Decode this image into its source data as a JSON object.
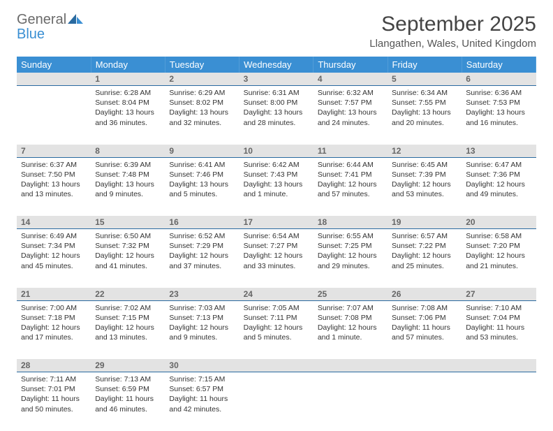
{
  "logo": {
    "word1": "General",
    "word2": "Blue"
  },
  "title": "September 2025",
  "location": "Llangathen, Wales, United Kingdom",
  "colors": {
    "header_bg": "#3a8fd3",
    "header_text": "#ffffff",
    "daynum_bg": "#e3e3e3",
    "daynum_text": "#666666",
    "rule": "#2a6aa0",
    "body_text": "#333333",
    "logo_grey": "#6a6a6a",
    "logo_blue": "#3a8fd3"
  },
  "weekdays": [
    "Sunday",
    "Monday",
    "Tuesday",
    "Wednesday",
    "Thursday",
    "Friday",
    "Saturday"
  ],
  "weeks": [
    {
      "nums": [
        "",
        "1",
        "2",
        "3",
        "4",
        "5",
        "6"
      ],
      "cells": [
        null,
        {
          "sunrise": "Sunrise: 6:28 AM",
          "sunset": "Sunset: 8:04 PM",
          "day1": "Daylight: 13 hours",
          "day2": "and 36 minutes."
        },
        {
          "sunrise": "Sunrise: 6:29 AM",
          "sunset": "Sunset: 8:02 PM",
          "day1": "Daylight: 13 hours",
          "day2": "and 32 minutes."
        },
        {
          "sunrise": "Sunrise: 6:31 AM",
          "sunset": "Sunset: 8:00 PM",
          "day1": "Daylight: 13 hours",
          "day2": "and 28 minutes."
        },
        {
          "sunrise": "Sunrise: 6:32 AM",
          "sunset": "Sunset: 7:57 PM",
          "day1": "Daylight: 13 hours",
          "day2": "and 24 minutes."
        },
        {
          "sunrise": "Sunrise: 6:34 AM",
          "sunset": "Sunset: 7:55 PM",
          "day1": "Daylight: 13 hours",
          "day2": "and 20 minutes."
        },
        {
          "sunrise": "Sunrise: 6:36 AM",
          "sunset": "Sunset: 7:53 PM",
          "day1": "Daylight: 13 hours",
          "day2": "and 16 minutes."
        }
      ]
    },
    {
      "nums": [
        "7",
        "8",
        "9",
        "10",
        "11",
        "12",
        "13"
      ],
      "cells": [
        {
          "sunrise": "Sunrise: 6:37 AM",
          "sunset": "Sunset: 7:50 PM",
          "day1": "Daylight: 13 hours",
          "day2": "and 13 minutes."
        },
        {
          "sunrise": "Sunrise: 6:39 AM",
          "sunset": "Sunset: 7:48 PM",
          "day1": "Daylight: 13 hours",
          "day2": "and 9 minutes."
        },
        {
          "sunrise": "Sunrise: 6:41 AM",
          "sunset": "Sunset: 7:46 PM",
          "day1": "Daylight: 13 hours",
          "day2": "and 5 minutes."
        },
        {
          "sunrise": "Sunrise: 6:42 AM",
          "sunset": "Sunset: 7:43 PM",
          "day1": "Daylight: 13 hours",
          "day2": "and 1 minute."
        },
        {
          "sunrise": "Sunrise: 6:44 AM",
          "sunset": "Sunset: 7:41 PM",
          "day1": "Daylight: 12 hours",
          "day2": "and 57 minutes."
        },
        {
          "sunrise": "Sunrise: 6:45 AM",
          "sunset": "Sunset: 7:39 PM",
          "day1": "Daylight: 12 hours",
          "day2": "and 53 minutes."
        },
        {
          "sunrise": "Sunrise: 6:47 AM",
          "sunset": "Sunset: 7:36 PM",
          "day1": "Daylight: 12 hours",
          "day2": "and 49 minutes."
        }
      ]
    },
    {
      "nums": [
        "14",
        "15",
        "16",
        "17",
        "18",
        "19",
        "20"
      ],
      "cells": [
        {
          "sunrise": "Sunrise: 6:49 AM",
          "sunset": "Sunset: 7:34 PM",
          "day1": "Daylight: 12 hours",
          "day2": "and 45 minutes."
        },
        {
          "sunrise": "Sunrise: 6:50 AM",
          "sunset": "Sunset: 7:32 PM",
          "day1": "Daylight: 12 hours",
          "day2": "and 41 minutes."
        },
        {
          "sunrise": "Sunrise: 6:52 AM",
          "sunset": "Sunset: 7:29 PM",
          "day1": "Daylight: 12 hours",
          "day2": "and 37 minutes."
        },
        {
          "sunrise": "Sunrise: 6:54 AM",
          "sunset": "Sunset: 7:27 PM",
          "day1": "Daylight: 12 hours",
          "day2": "and 33 minutes."
        },
        {
          "sunrise": "Sunrise: 6:55 AM",
          "sunset": "Sunset: 7:25 PM",
          "day1": "Daylight: 12 hours",
          "day2": "and 29 minutes."
        },
        {
          "sunrise": "Sunrise: 6:57 AM",
          "sunset": "Sunset: 7:22 PM",
          "day1": "Daylight: 12 hours",
          "day2": "and 25 minutes."
        },
        {
          "sunrise": "Sunrise: 6:58 AM",
          "sunset": "Sunset: 7:20 PM",
          "day1": "Daylight: 12 hours",
          "day2": "and 21 minutes."
        }
      ]
    },
    {
      "nums": [
        "21",
        "22",
        "23",
        "24",
        "25",
        "26",
        "27"
      ],
      "cells": [
        {
          "sunrise": "Sunrise: 7:00 AM",
          "sunset": "Sunset: 7:18 PM",
          "day1": "Daylight: 12 hours",
          "day2": "and 17 minutes."
        },
        {
          "sunrise": "Sunrise: 7:02 AM",
          "sunset": "Sunset: 7:15 PM",
          "day1": "Daylight: 12 hours",
          "day2": "and 13 minutes."
        },
        {
          "sunrise": "Sunrise: 7:03 AM",
          "sunset": "Sunset: 7:13 PM",
          "day1": "Daylight: 12 hours",
          "day2": "and 9 minutes."
        },
        {
          "sunrise": "Sunrise: 7:05 AM",
          "sunset": "Sunset: 7:11 PM",
          "day1": "Daylight: 12 hours",
          "day2": "and 5 minutes."
        },
        {
          "sunrise": "Sunrise: 7:07 AM",
          "sunset": "Sunset: 7:08 PM",
          "day1": "Daylight: 12 hours",
          "day2": "and 1 minute."
        },
        {
          "sunrise": "Sunrise: 7:08 AM",
          "sunset": "Sunset: 7:06 PM",
          "day1": "Daylight: 11 hours",
          "day2": "and 57 minutes."
        },
        {
          "sunrise": "Sunrise: 7:10 AM",
          "sunset": "Sunset: 7:04 PM",
          "day1": "Daylight: 11 hours",
          "day2": "and 53 minutes."
        }
      ]
    },
    {
      "nums": [
        "28",
        "29",
        "30",
        "",
        "",
        "",
        ""
      ],
      "cells": [
        {
          "sunrise": "Sunrise: 7:11 AM",
          "sunset": "Sunset: 7:01 PM",
          "day1": "Daylight: 11 hours",
          "day2": "and 50 minutes."
        },
        {
          "sunrise": "Sunrise: 7:13 AM",
          "sunset": "Sunset: 6:59 PM",
          "day1": "Daylight: 11 hours",
          "day2": "and 46 minutes."
        },
        {
          "sunrise": "Sunrise: 7:15 AM",
          "sunset": "Sunset: 6:57 PM",
          "day1": "Daylight: 11 hours",
          "day2": "and 42 minutes."
        },
        null,
        null,
        null,
        null
      ]
    }
  ]
}
